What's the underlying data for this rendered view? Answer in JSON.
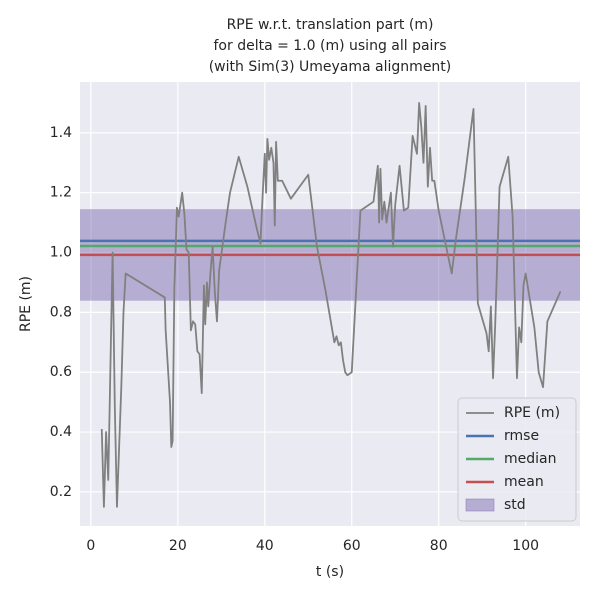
{
  "chart_data": {
    "type": "line",
    "title": [
      "RPE w.r.t. translation part (m)",
      "for delta = 1.0 (m) using all pairs",
      "(with Sim(3) Umeyama alignment)"
    ],
    "xlabel": "t (s)",
    "ylabel": "RPE (m)",
    "xlim": [
      -2.5,
      112.5
    ],
    "ylim": [
      0.086,
      1.57
    ],
    "xticks": [
      0,
      20,
      40,
      60,
      80,
      100
    ],
    "yticks": [
      0.2,
      0.4,
      0.6,
      0.8,
      {
        "value": 1,
        "label": "1.0"
      },
      1.2,
      1.4
    ],
    "grid": true,
    "legend": "lower right",
    "x": [
      2.5,
      3,
      3.5,
      4,
      5,
      5.5,
      6,
      7,
      7.5,
      8,
      17,
      17.2,
      18.2,
      18.5,
      18.8,
      19.2,
      19.8,
      20.2,
      21,
      21.5,
      22,
      22.5,
      23,
      23.5,
      24,
      24.5,
      25,
      25.5,
      26,
      26.3,
      26.7,
      27,
      27.5,
      28,
      28.5,
      29,
      29.5,
      31,
      32,
      34,
      36,
      38,
      39,
      39.5,
      40,
      40.3,
      40.6,
      41,
      41.5,
      42,
      42.3,
      42.6,
      43,
      44,
      46,
      50,
      52,
      54,
      56,
      56.5,
      57,
      57.5,
      58,
      58.5,
      59,
      60,
      62,
      65,
      66,
      66.3,
      66.6,
      67,
      67.5,
      68,
      69,
      69.5,
      70,
      71,
      72,
      73,
      74,
      75,
      75.5,
      76,
      76.5,
      77,
      77.5,
      78,
      78.5,
      79,
      80,
      83,
      84,
      86,
      88,
      89,
      91,
      91.5,
      92,
      92.5,
      93,
      94,
      96,
      97,
      98,
      98.5,
      99,
      99.5,
      100,
      102,
      103,
      104,
      105,
      108
    ],
    "series": [
      {
        "name": "RPE (m)",
        "color": "#808080",
        "values": [
          0.41,
          0.15,
          0.4,
          0.24,
          1.0,
          0.49,
          0.15,
          0.55,
          0.8,
          0.93,
          0.85,
          0.74,
          0.5,
          0.35,
          0.37,
          0.88,
          1.15,
          1.12,
          1.2,
          1.13,
          1.01,
          1.0,
          0.74,
          0.77,
          0.76,
          0.67,
          0.66,
          0.53,
          0.89,
          0.76,
          0.9,
          0.82,
          0.93,
          1.02,
          0.87,
          0.77,
          0.94,
          1.1,
          1.2,
          1.32,
          1.22,
          1.09,
          1.03,
          1.19,
          1.33,
          1.2,
          1.38,
          1.31,
          1.35,
          1.3,
          1.09,
          1.37,
          1.24,
          1.24,
          1.18,
          1.26,
          1.02,
          0.87,
          0.7,
          0.72,
          0.69,
          0.7,
          0.64,
          0.6,
          0.59,
          0.6,
          1.14,
          1.17,
          1.29,
          1.1,
          1.28,
          1.11,
          1.17,
          1.1,
          1.2,
          1.02,
          1.16,
          1.29,
          1.14,
          1.15,
          1.39,
          1.33,
          1.5,
          1.42,
          1.3,
          1.49,
          1.22,
          1.35,
          1.24,
          1.24,
          1.14,
          0.93,
          1.05,
          1.25,
          1.48,
          0.83,
          0.73,
          0.67,
          0.82,
          0.58,
          0.76,
          1.22,
          1.32,
          1.12,
          0.58,
          0.75,
          0.7,
          0.89,
          0.93,
          0.75,
          0.6,
          0.55,
          0.77,
          0.87
        ]
      }
    ],
    "reference_lines": [
      {
        "name": "rmse",
        "color": "#4c72b0",
        "value": 1.039
      },
      {
        "name": "median",
        "color": "#55a868",
        "value": 1.022
      },
      {
        "name": "mean",
        "color": "#c44e52",
        "value": 0.992
      }
    ],
    "std": {
      "name": "std",
      "color": "#8172b2",
      "value": 0.153
    }
  }
}
